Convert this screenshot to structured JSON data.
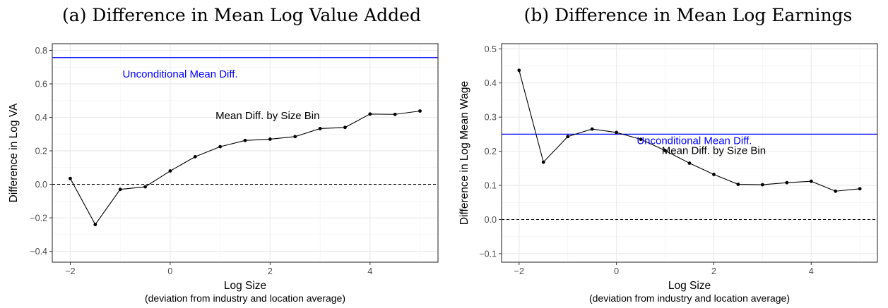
{
  "chart_data": [
    {
      "type": "line",
      "title": "(a) Difference in Mean Log Value Added",
      "xlabel": "Log Size",
      "xlabel_sub": "(deviation from industry and location average)",
      "ylabel": "Difference in Log VA",
      "xlim": [
        -2.36,
        5.36
      ],
      "ylim": [
        -0.465,
        0.84
      ],
      "xticks": [
        -2,
        0,
        2,
        4
      ],
      "yticks": [
        -0.4,
        -0.2,
        0.0,
        0.2,
        0.4,
        0.6,
        0.8
      ],
      "ytick_labels": [
        "−0.4",
        "−0.2",
        "0.0",
        "0.2",
        "0.4",
        "0.6",
        "0.8"
      ],
      "xtick_labels": [
        "−2",
        "0",
        "2",
        "4"
      ],
      "grid": true,
      "x": [
        -2,
        -1.5,
        -1,
        -0.5,
        0,
        0.5,
        1,
        1.5,
        2,
        2.5,
        3,
        3.5,
        4,
        4.5,
        5
      ],
      "series": [
        {
          "values": [
            0.035,
            -0.24,
            -0.03,
            -0.015,
            0.08,
            0.165,
            0.225,
            0.262,
            0.27,
            0.285,
            0.333,
            0.34,
            0.42,
            0.418,
            0.438
          ],
          "color": "#000000"
        }
      ],
      "hline_mean": {
        "value": 0.757,
        "color": "#0000ff"
      },
      "hline_zero": {
        "value": 0.0
      },
      "annotations": [
        {
          "text": "Unconditional Mean Diff.",
          "x": 0.2,
          "y": 0.655,
          "color": "#0000ff"
        },
        {
          "text": "Mean Diff. by Size Bin",
          "x": 1.95,
          "y": 0.407,
          "color": "#000000"
        }
      ]
    },
    {
      "type": "line",
      "title": "(b) Difference in Mean Log Earnings",
      "xlabel": "Log Size",
      "xlabel_sub": "(deviation from industry and location average)",
      "ylabel": "Difference in Log Mean Wage",
      "xlim": [
        -2.36,
        5.36
      ],
      "ylim": [
        -0.125,
        0.515
      ],
      "xticks": [
        -2,
        0,
        2,
        4
      ],
      "yticks": [
        -0.1,
        0.0,
        0.1,
        0.2,
        0.3,
        0.4,
        0.5
      ],
      "ytick_labels": [
        "−0.1",
        "0.0",
        "0.1",
        "0.2",
        "0.3",
        "0.4",
        "0.5"
      ],
      "xtick_labels": [
        "−2",
        "0",
        "2",
        "4"
      ],
      "grid": true,
      "x": [
        -2,
        -1.5,
        -1,
        -0.5,
        0,
        0.5,
        1,
        1.5,
        2,
        2.5,
        3,
        3.5,
        4,
        4.5,
        5
      ],
      "series": [
        {
          "values": [
            0.437,
            0.168,
            0.243,
            0.265,
            0.255,
            0.235,
            0.202,
            0.165,
            0.132,
            0.103,
            0.102,
            0.108,
            0.112,
            0.083,
            0.09
          ],
          "color": "#000000"
        }
      ],
      "hline_mean": {
        "value": 0.25,
        "color": "#0000ff"
      },
      "hline_zero": {
        "value": 0.0
      },
      "annotations": [
        {
          "text": "Unconditional Mean Diff.",
          "x": 1.6,
          "y": 0.229,
          "color": "#0000ff"
        },
        {
          "text": "Mean Diff. by Size Bin",
          "x": 2.0,
          "y": 0.2,
          "color": "#000000"
        }
      ]
    }
  ]
}
